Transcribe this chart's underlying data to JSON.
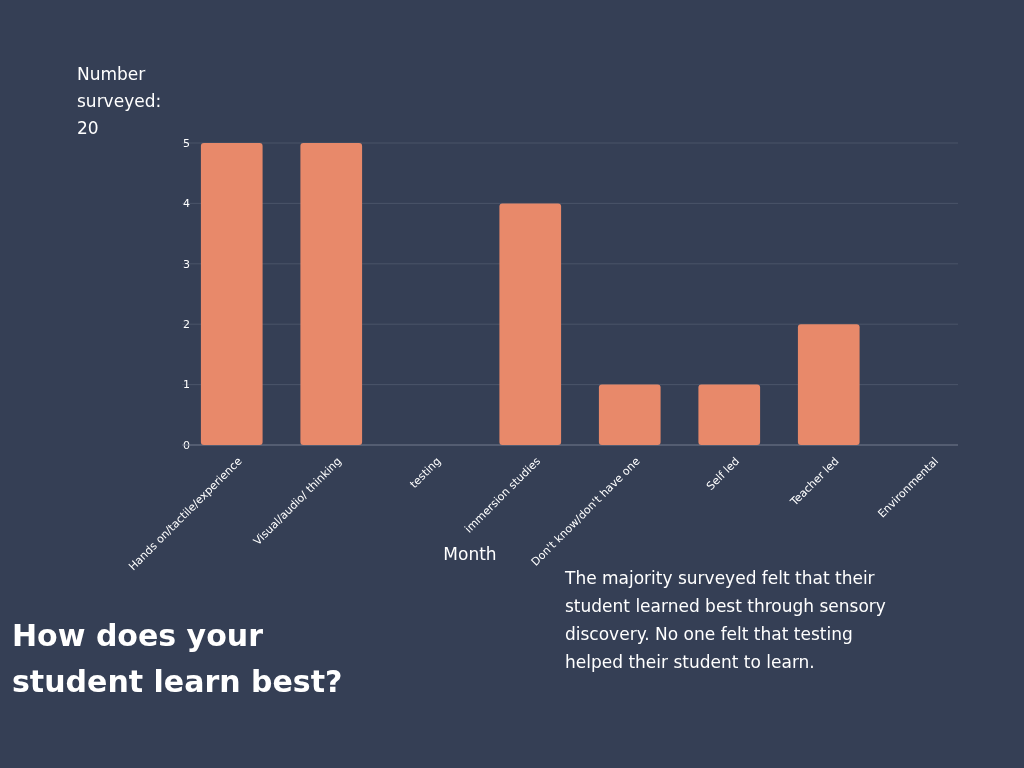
{
  "chart_data": {
    "type": "bar",
    "title": "How does your student learn best?",
    "ylabel": "Number surveyed: 20",
    "xlabel": "Month",
    "categories": [
      "Hands on/tactile/experience",
      "Visual/audio/ thinking",
      "testing",
      "immersion studies",
      "Don't know/don't have one",
      "Self led",
      "Teacher led",
      "Environmental"
    ],
    "values": [
      5,
      5,
      0,
      4,
      1,
      1,
      2,
      0
    ],
    "color": "#e8896a",
    "ylim": [
      0,
      5
    ],
    "yticks": [
      0,
      1,
      2,
      3,
      4,
      5
    ],
    "grid": "y",
    "annotations": [
      "The majority surveyed felt that their student learned best through sensory discovery.  No one felt that testing helped their student to learn."
    ]
  }
}
